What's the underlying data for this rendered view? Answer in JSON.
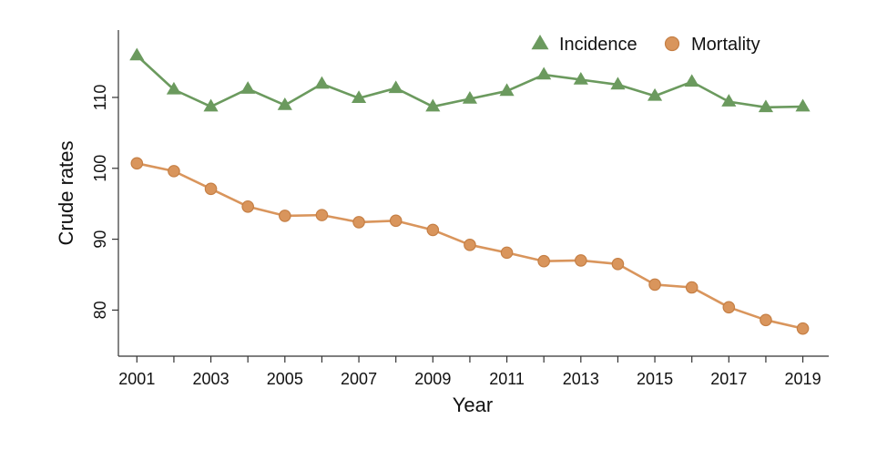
{
  "chart_data": {
    "type": "line",
    "title": "",
    "xlabel": "Year",
    "ylabel": "Crude rates",
    "x": [
      2001,
      2002,
      2003,
      2004,
      2005,
      2006,
      2007,
      2008,
      2009,
      2010,
      2011,
      2012,
      2013,
      2014,
      2015,
      2016,
      2017,
      2018,
      2019
    ],
    "xticks": [
      "2001",
      "2003",
      "2005",
      "2007",
      "2009",
      "2011",
      "2013",
      "2015",
      "2017",
      "2019"
    ],
    "yticks": [
      "80",
      "90",
      "100",
      "110"
    ],
    "xlim": [
      2000.5,
      2019.7
    ],
    "ylim": [
      73.5,
      119.5
    ],
    "grid": false,
    "legend_position": "top-right",
    "series": [
      {
        "name": "Incidence",
        "marker": "triangle",
        "color": "#6b9a5e",
        "values": [
          115.9,
          111.1,
          108.7,
          111.2,
          108.9,
          111.9,
          109.9,
          111.3,
          108.7,
          109.8,
          110.9,
          113.2,
          112.5,
          111.8,
          110.2,
          112.2,
          109.4,
          108.6,
          108.7
        ]
      },
      {
        "name": "Mortality",
        "marker": "circle",
        "color": "#d9955c",
        "values": [
          100.7,
          99.6,
          97.1,
          94.6,
          93.3,
          93.4,
          92.4,
          92.6,
          91.3,
          89.2,
          88.1,
          86.9,
          87.0,
          86.5,
          83.6,
          83.2,
          80.4,
          78.6,
          77.4
        ]
      }
    ]
  }
}
